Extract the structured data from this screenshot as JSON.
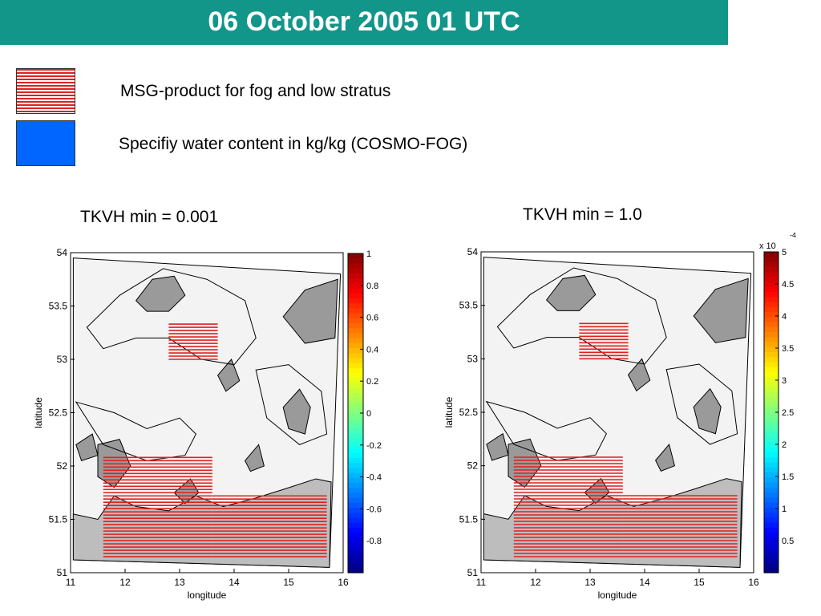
{
  "header": {
    "title": "06 October 2005 01 UTC",
    "background": "#12968a"
  },
  "legend": {
    "items": [
      {
        "label": "MSG-product for fog and low stratus",
        "swatch": "red-hatch",
        "color": "#e02020"
      },
      {
        "label": "Specifiy water content in kg/kg (COSMO-FOG)",
        "swatch": "solid",
        "color": "#0066ff"
      }
    ]
  },
  "chart_data": [
    {
      "type": "heatmap",
      "title": "TKVH min = 0.001",
      "xlabel": "longitude",
      "ylabel": "latitude",
      "xlim": [
        11,
        16
      ],
      "ylim": [
        51,
        54
      ],
      "xticks": [
        "11",
        "12",
        "13",
        "14",
        "15",
        "16"
      ],
      "yticks": [
        "51",
        "51.5",
        "52",
        "52.5",
        "53",
        "53.5",
        "54"
      ],
      "colorbar": {
        "colormap": "jet",
        "range": [
          -1,
          1
        ],
        "ticks": [
          "1",
          "0.8",
          "0.6",
          "0.4",
          "0.2",
          "0",
          "-0.2",
          "-0.4",
          "-0.6",
          "-0.8"
        ],
        "exponent_label": ""
      }
    },
    {
      "type": "heatmap",
      "title": "TKVH min = 1.0",
      "xlabel": "longitude",
      "ylabel": "latitude",
      "xlim": [
        11,
        16
      ],
      "ylim": [
        51,
        54
      ],
      "xticks": [
        "11",
        "12",
        "13",
        "14",
        "15",
        "16"
      ],
      "yticks": [
        "51",
        "51.5",
        "52",
        "52.5",
        "53",
        "53.5",
        "54"
      ],
      "colorbar": {
        "colormap": "jet",
        "range": [
          0,
          5
        ],
        "ticks": [
          "5",
          "4.5",
          "4",
          "3.5",
          "3",
          "2.5",
          "2",
          "1.5",
          "1",
          "0.5"
        ],
        "exponent_label": "x 10",
        "exponent": "-4"
      }
    }
  ]
}
